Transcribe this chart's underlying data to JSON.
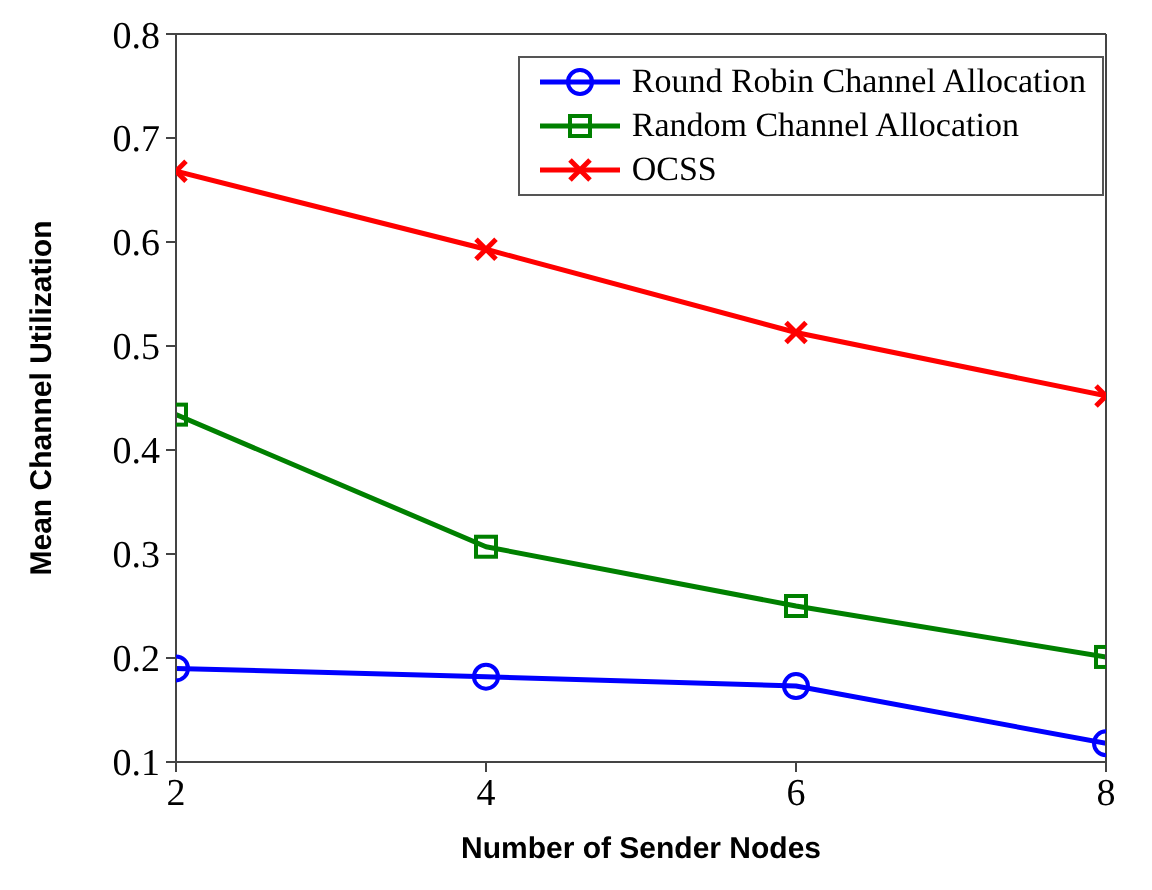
{
  "chart_data": {
    "type": "line",
    "xlabel": "Number of Sender Nodes",
    "ylabel": "Mean Channel Utilization",
    "x": [
      2,
      4,
      6,
      8
    ],
    "xlim": [
      2,
      8
    ],
    "xticks": [
      2,
      4,
      6,
      8
    ],
    "ylim": [
      0.1,
      0.8
    ],
    "yticks": [
      0.1,
      0.2,
      0.3,
      0.4,
      0.5,
      0.6,
      0.7,
      0.8
    ],
    "grid": false,
    "legend": "top right",
    "series": [
      {
        "name": "Round Robin Channel Allocation",
        "color": "#0000ff",
        "marker": "circle",
        "values": [
          0.19,
          0.182,
          0.173,
          0.118
        ]
      },
      {
        "name": "Random Channel Allocation",
        "color": "#008000",
        "marker": "square",
        "values": [
          0.434,
          0.307,
          0.25,
          0.201
        ]
      },
      {
        "name": "OCSS",
        "color": "#ff0000",
        "marker": "cross",
        "values": [
          0.668,
          0.593,
          0.513,
          0.452
        ]
      }
    ]
  }
}
